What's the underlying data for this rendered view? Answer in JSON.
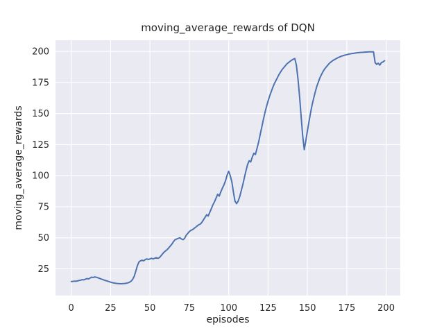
{
  "chart_data": {
    "type": "line",
    "title": "moving_average_rewards of DQN",
    "xlabel": "episodes",
    "ylabel": "moving_average_rewards",
    "x_start": 0,
    "x_step": 1,
    "n_points": 200,
    "values": [
      14.7,
      14.9,
      15.1,
      15.0,
      15.3,
      15.6,
      15.9,
      16.3,
      16.1,
      16.7,
      17.1,
      16.9,
      17.6,
      18.3,
      18.0,
      18.5,
      18.2,
      17.8,
      17.3,
      16.8,
      16.4,
      15.9,
      15.5,
      15.1,
      14.7,
      14.3,
      13.9,
      13.6,
      13.4,
      13.2,
      13.1,
      13.0,
      13.0,
      13.1,
      13.2,
      13.4,
      13.7,
      14.2,
      15.0,
      16.5,
      19.0,
      23.0,
      27.5,
      30.5,
      31.5,
      32.0,
      31.5,
      32.5,
      33.0,
      32.5,
      33.0,
      33.5,
      33.0,
      33.5,
      34.0,
      33.5,
      34.0,
      35.5,
      37.0,
      38.5,
      39.5,
      40.5,
      42.0,
      43.5,
      45.0,
      47.0,
      48.5,
      49.0,
      49.5,
      50.0,
      49.0,
      48.5,
      49.5,
      52.0,
      53.5,
      55.0,
      56.0,
      56.5,
      57.5,
      58.5,
      59.5,
      60.5,
      61.0,
      62.5,
      64.5,
      66.5,
      68.5,
      67.5,
      70.5,
      73.5,
      76.5,
      79.0,
      82.0,
      85.0,
      83.5,
      87.0,
      90.0,
      92.5,
      96.0,
      100.5,
      103.5,
      100.0,
      95.0,
      87.0,
      79.5,
      77.5,
      79.5,
      83.0,
      88.0,
      93.0,
      98.5,
      104.0,
      109.0,
      112.0,
      111.0,
      115.0,
      118.0,
      117.0,
      122.0,
      127.0,
      133.0,
      139.0,
      145.0,
      150.5,
      155.5,
      160.0,
      164.0,
      167.5,
      171.0,
      174.0,
      176.5,
      179.0,
      181.5,
      183.5,
      185.5,
      187.0,
      188.5,
      190.0,
      191.0,
      192.0,
      193.0,
      193.7,
      194.3,
      189.0,
      178.0,
      164.0,
      148.0,
      132.0,
      121.0,
      128.0,
      136.0,
      143.5,
      150.5,
      157.0,
      162.5,
      167.5,
      172.0,
      175.5,
      179.0,
      181.5,
      184.0,
      186.0,
      187.5,
      189.0,
      190.5,
      191.5,
      192.5,
      193.3,
      194.0,
      194.7,
      195.3,
      195.8,
      196.3,
      196.7,
      197.1,
      197.4,
      197.7,
      198.0,
      198.2,
      198.4,
      198.6,
      198.8,
      199.0,
      199.1,
      199.2,
      199.3,
      199.4,
      199.5,
      199.5,
      199.6,
      199.6,
      199.7,
      199.7,
      191.0,
      189.5,
      190.5,
      189.0,
      191.0,
      191.5,
      192.5
    ],
    "xlim": [
      -10,
      209
    ],
    "ylim": [
      3.5,
      209
    ],
    "xticks": [
      0,
      25,
      50,
      75,
      100,
      125,
      150,
      175,
      200
    ],
    "yticks": [
      25,
      50,
      75,
      100,
      125,
      150,
      175,
      200
    ],
    "grid": true,
    "legend": false,
    "line_color": "#4c72b0",
    "plot_bg_color": "#eaeaf2",
    "grid_color": "#ffffff",
    "figure_bg_color": "#ffffff",
    "text_color": "#262626"
  }
}
